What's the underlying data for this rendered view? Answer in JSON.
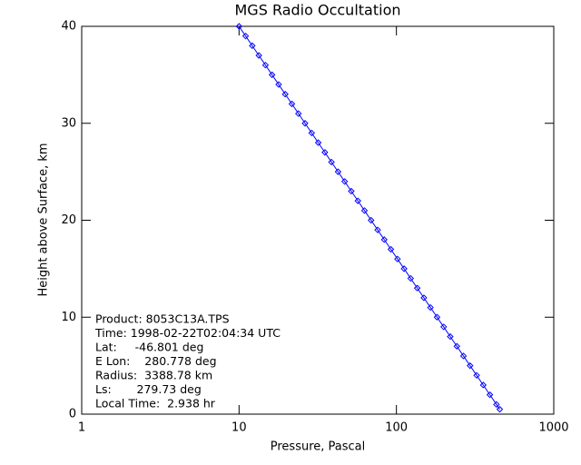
{
  "chart_data": {
    "type": "line",
    "title": "MGS Radio Occultation",
    "x_label": "Pressure, Pascal",
    "y_label": "Height above Surface, km",
    "xscale": "log",
    "xlim": [
      1,
      1000
    ],
    "xticks": [
      1,
      10,
      100,
      1000
    ],
    "ylim": [
      0,
      40
    ],
    "yticks": [
      0,
      10,
      20,
      30,
      40
    ],
    "x": [
      10.0,
      11.01,
      12.13,
      13.36,
      14.72,
      16.21,
      17.85,
      19.66,
      21.66,
      23.85,
      26.27,
      28.94,
      31.87,
      35.1,
      38.66,
      42.58,
      46.9,
      51.66,
      56.89,
      62.66,
      69.02,
      76.02,
      83.72,
      92.21,
      101.6,
      111.9,
      123.2,
      135.7,
      149.4,
      164.6,
      181.3,
      199.7,
      219.9,
      242.2,
      266.8,
      293.8,
      323.6,
      356.4,
      392.6,
      432.4,
      453.8
    ],
    "series": [
      {
        "color": "#0000ff",
        "values": [
          40,
          39,
          38,
          37,
          36,
          35,
          34,
          33,
          32,
          31,
          30,
          29,
          28,
          27,
          26,
          25,
          24,
          23,
          22,
          21,
          20,
          19,
          18,
          17,
          16,
          15,
          14,
          13,
          12,
          11,
          10,
          9,
          8,
          7,
          6,
          5,
          4,
          3,
          2,
          1,
          0.5
        ]
      }
    ],
    "annotations": [
      "Product: 8053C13A.TPS",
      "Time: 1998-02-22T02:04:34 UTC",
      "Lat:     -46.801 deg",
      "E Lon:    280.778 deg",
      "Radius:  3388.78 km",
      "Ls:       279.73 deg",
      "Local Time:  2.938 hr"
    ]
  }
}
